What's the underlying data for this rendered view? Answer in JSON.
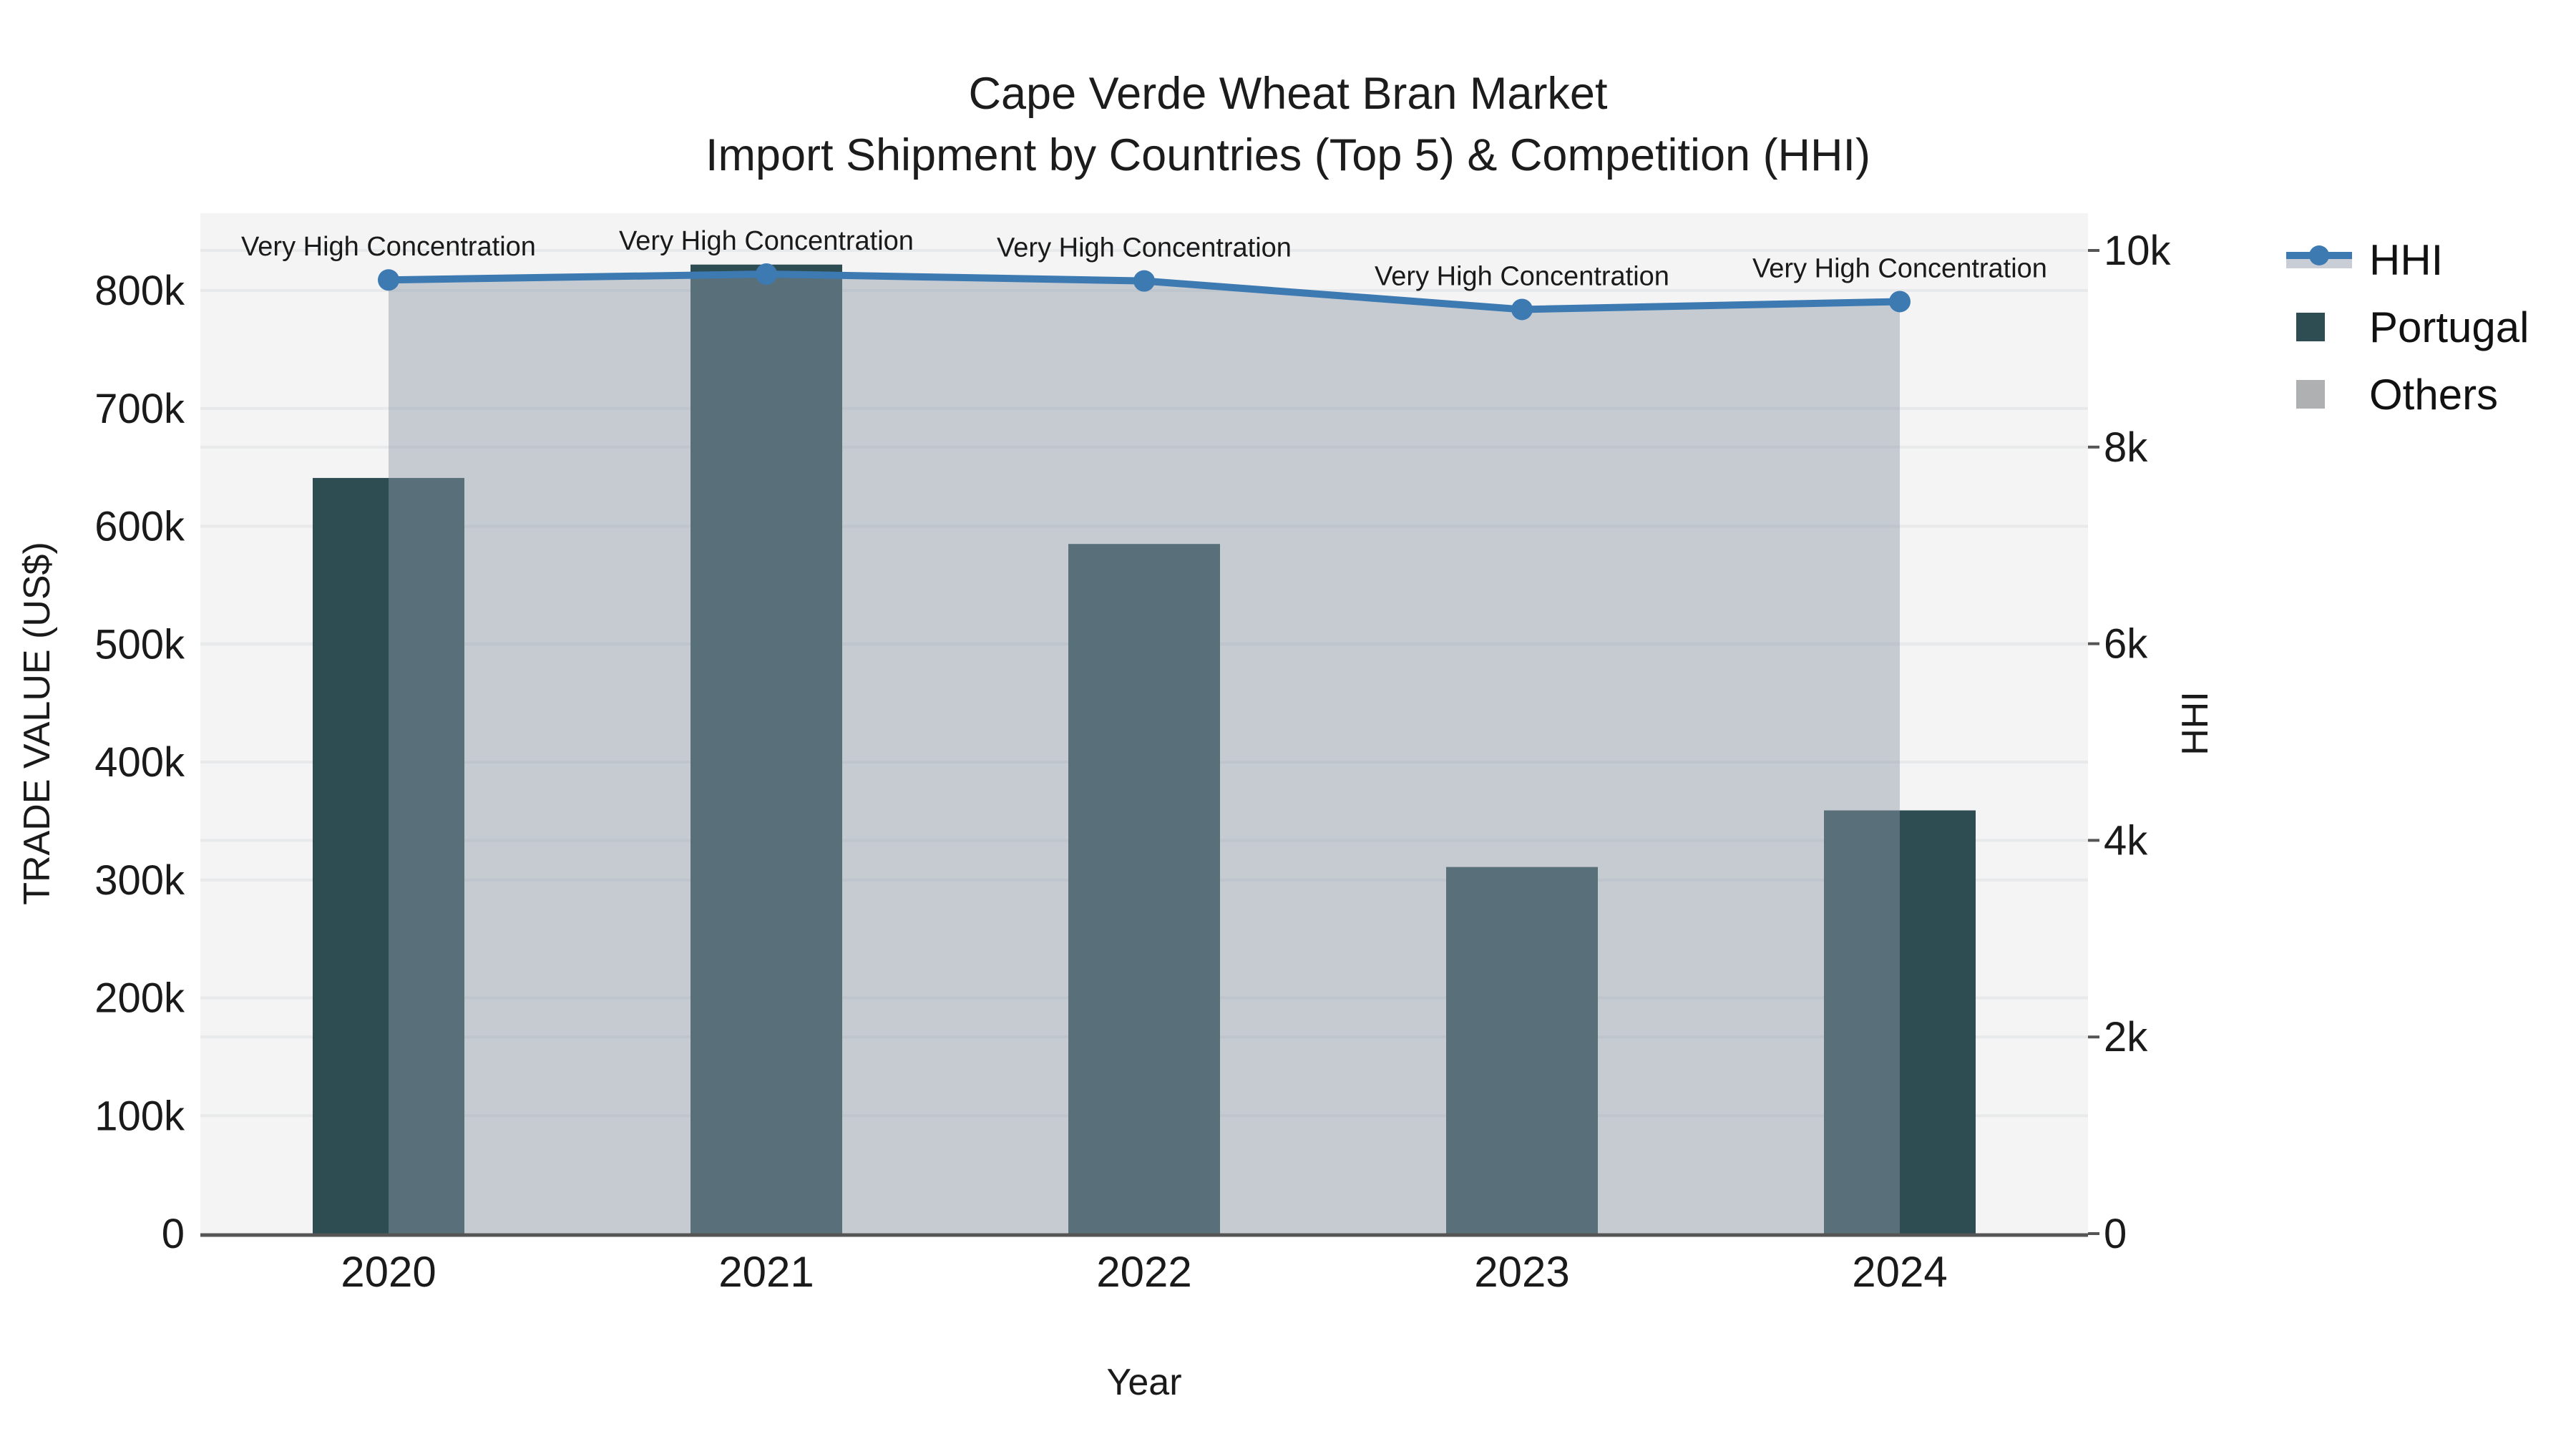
{
  "title": {
    "line1": "Cape Verde Wheat Bran Market",
    "line2": "Import Shipment by Countries (Top 5) & Competition (HHI)"
  },
  "axes": {
    "x_title": "Year",
    "y_left_title": "TRADE VALUE (US$)",
    "y_right_title": "HHI"
  },
  "legend": {
    "hhi": "HHI",
    "portugal": "Portugal",
    "others": "Others"
  },
  "colors": {
    "bar_portugal": "#2e4d52",
    "others_swatch": "#aeb0b1",
    "hhi_line": "#3d7ab2",
    "hhi_area_fill": "rgba(141,153,169,0.45)",
    "plot_background": "#f4f4f4",
    "gridline": "#e7e9ea",
    "axis_line": "#555555"
  },
  "chart_data": {
    "type": "bar",
    "subtype": "dual-axis bar + line (line with area fill to zero)",
    "title": "Cape Verde Wheat Bran Market — Import Shipment by Countries (Top 5) & Competition (HHI)",
    "xlabel": "Year",
    "ylabel_left": "TRADE VALUE (US$)",
    "ylabel_right": "HHI",
    "categories": [
      "2020",
      "2021",
      "2022",
      "2023",
      "2024"
    ],
    "series": [
      {
        "name": "Portugal",
        "type": "bar",
        "yaxis": "left",
        "color": "#2e4d52",
        "values": [
          641000,
          822000,
          585000,
          311000,
          359000
        ]
      },
      {
        "name": "Others",
        "type": "bar",
        "yaxis": "left",
        "color": "#aeb0b1",
        "values": [
          0,
          0,
          0,
          0,
          0
        ],
        "note": "bars too small to be visible at chart scale"
      },
      {
        "name": "HHI",
        "type": "line",
        "yaxis": "right",
        "color": "#3d7ab2",
        "fill": "tozero",
        "fill_color": "rgba(141,153,169,0.45)",
        "marker": "circle",
        "values": [
          9700,
          9760,
          9690,
          9400,
          9480
        ]
      }
    ],
    "annotations": [
      "Very High Concentration",
      "Very High Concentration",
      "Very High Concentration",
      "Very High Concentration",
      "Very High Concentration"
    ],
    "ylim_left": [
      0,
      866000
    ],
    "ylim_right": [
      0,
      10380
    ],
    "yticks_left": {
      "values": [
        0,
        100000,
        200000,
        300000,
        400000,
        500000,
        600000,
        700000,
        800000
      ],
      "labels": [
        "0",
        "100k",
        "200k",
        "300k",
        "400k",
        "500k",
        "600k",
        "700k",
        "800k"
      ]
    },
    "yticks_right": {
      "values": [
        0,
        2000,
        4000,
        6000,
        8000,
        10000
      ],
      "labels": [
        "0",
        "2k",
        "4k",
        "6k",
        "8k",
        "10k"
      ]
    },
    "grid": true,
    "legend_position": "outside-top-right"
  }
}
